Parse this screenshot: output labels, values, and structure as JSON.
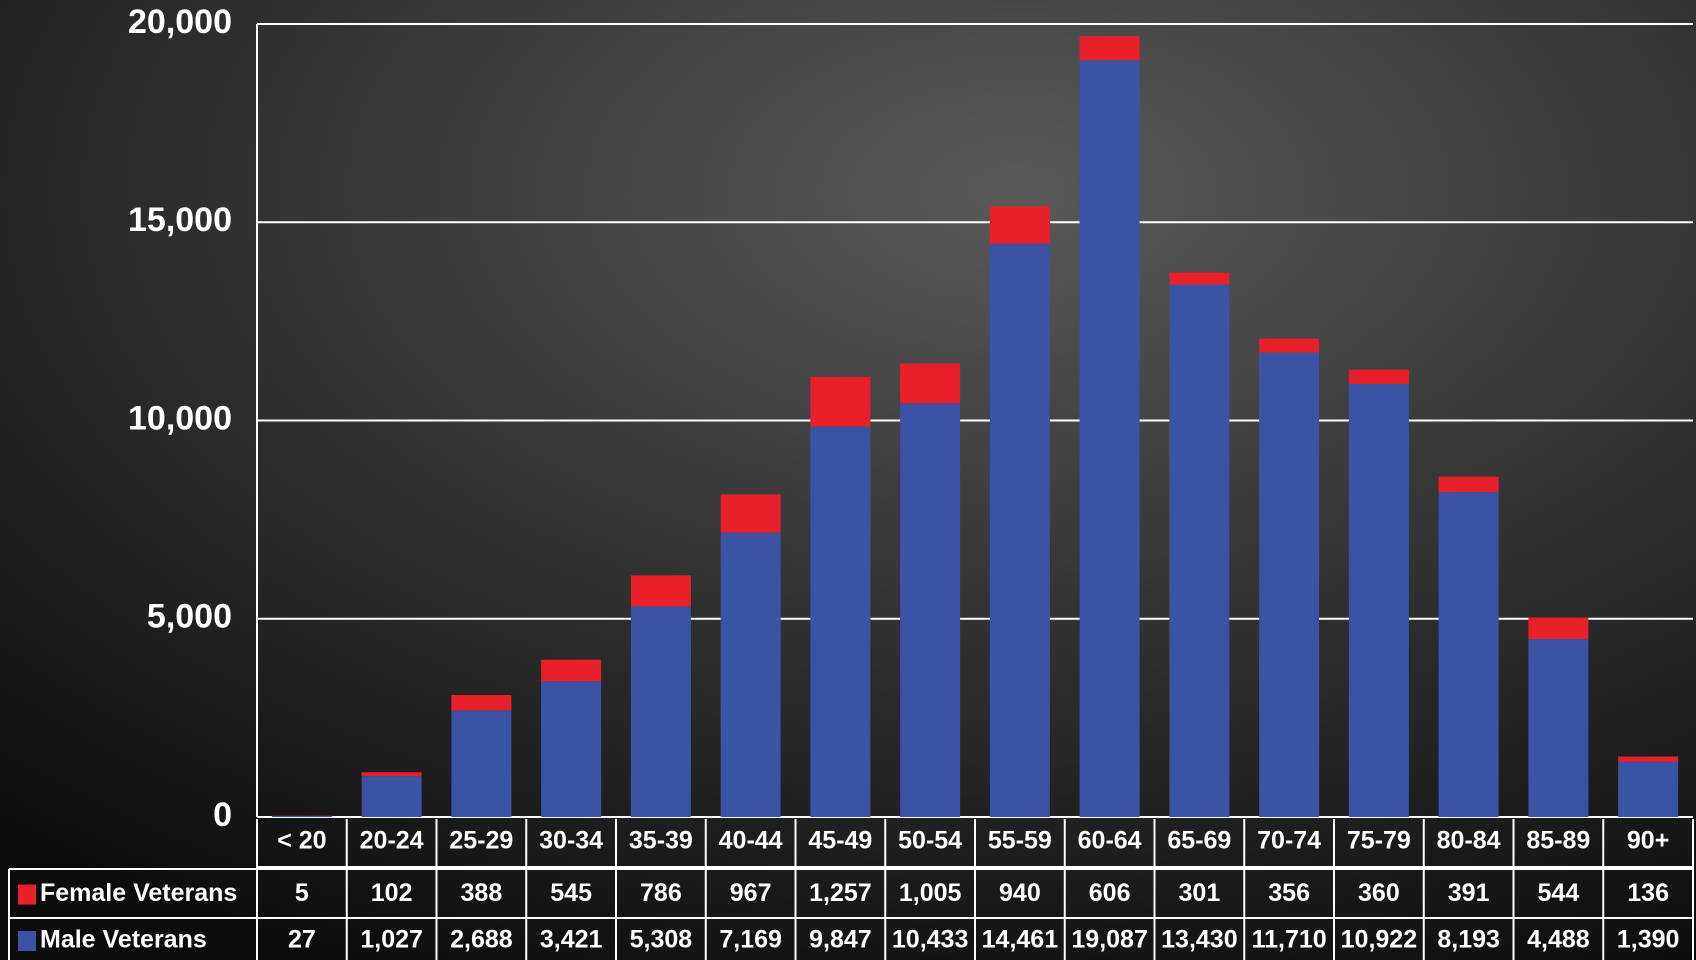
{
  "chart_data": {
    "type": "stacked_bar",
    "categories": [
      "< 20",
      "20-24",
      "25-29",
      "30-34",
      "35-39",
      "40-44",
      "45-49",
      "50-54",
      "55-59",
      "60-64",
      "65-69",
      "70-74",
      "75-79",
      "80-84",
      "85-89",
      "90+"
    ],
    "series": [
      {
        "name": "Female Veterans",
        "color": "#e8202a",
        "values": [
          5,
          102,
          388,
          545,
          786,
          967,
          1257,
          1005,
          940,
          606,
          301,
          356,
          360,
          391,
          544,
          136
        ],
        "value_labels": [
          "5",
          "102",
          "388",
          "545",
          "786",
          "967",
          "1,257",
          "1,005",
          "940",
          "606",
          "301",
          "356",
          "360",
          "391",
          "544",
          "136"
        ]
      },
      {
        "name": "Male Veterans",
        "color": "#3a53a4",
        "values": [
          27,
          1027,
          2688,
          3421,
          5308,
          7169,
          9847,
          10433,
          14461,
          19087,
          13430,
          11710,
          10922,
          8193,
          4488,
          1390
        ],
        "value_labels": [
          "27",
          "1,027",
          "2,688",
          "3,421",
          "5,308",
          "7,169",
          "9,847",
          "10,433",
          "14,461",
          "19,087",
          "13,430",
          "11,710",
          "10,922",
          "8,193",
          "4,488",
          "1,390"
        ]
      }
    ],
    "ylim": [
      0,
      20000
    ],
    "yticks": [
      0,
      {
        "value": 5000,
        "label": "5,000"
      },
      {
        "value": 10000,
        "label": "10,000"
      },
      {
        "value": 15000,
        "label": "15,000"
      },
      {
        "value": 20000,
        "label": "20,000"
      }
    ],
    "grid": true
  }
}
